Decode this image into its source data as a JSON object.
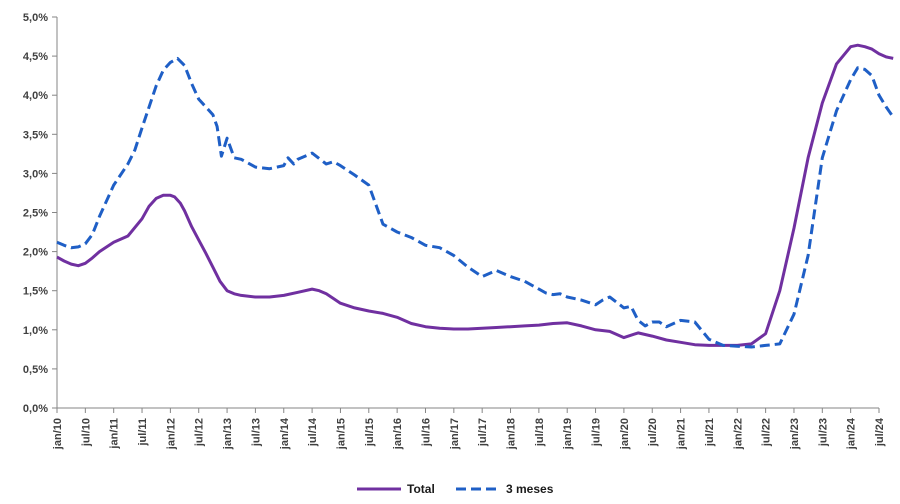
{
  "chart_data": {
    "type": "line",
    "title": "",
    "xlabel": "",
    "ylabel": "",
    "ylim": [
      0,
      5
    ],
    "y_ticks": [
      0,
      0.5,
      1,
      1.5,
      2,
      2.5,
      3,
      3.5,
      4,
      4.5,
      5
    ],
    "y_tick_labels": [
      "0,0%",
      "0,5%",
      "1,0%",
      "1,5%",
      "2,0%",
      "2,5%",
      "3,0%",
      "3,5%",
      "4,0%",
      "4,5%",
      "5,0%"
    ],
    "x_tick_labels": [
      "jan/10",
      "jul/10",
      "jan/11",
      "jul/11",
      "jan/12",
      "jul/12",
      "jan/13",
      "jul/13",
      "jan/14",
      "jul/14",
      "jan/15",
      "jul/15",
      "jan/16",
      "jul/16",
      "jan/17",
      "jul/17",
      "jan/18",
      "jul/18",
      "jan/19",
      "jul/19",
      "jan/20",
      "jul/20",
      "jan/21",
      "jul/21",
      "jan/22",
      "jul/22",
      "jan/23",
      "jul/23",
      "jan/24",
      "jul/24"
    ],
    "grid": false,
    "legend_position": "bottom",
    "series": [
      {
        "name": "Total",
        "color": "#7030A0",
        "style": "solid",
        "x": [
          0,
          0.5,
          1,
          1.5,
          2,
          2.5,
          3,
          4,
          5,
          6,
          6.5,
          7,
          7.5,
          8,
          8.3,
          8.7,
          9,
          9.5,
          10,
          10.5,
          11,
          11.5,
          12,
          12.5,
          13,
          14,
          15,
          16,
          17,
          18,
          18.5,
          19,
          19.5,
          20,
          21,
          22,
          23,
          24,
          25,
          26,
          27,
          28,
          29,
          30,
          31,
          32,
          33,
          34,
          35,
          36,
          37,
          38,
          39,
          40,
          41,
          42,
          43,
          44,
          45,
          46,
          47,
          48,
          49,
          50,
          51,
          52,
          53,
          54,
          55,
          56,
          56.5,
          57,
          57.5,
          58,
          58.5,
          59
        ],
        "values": [
          1.93,
          1.88,
          1.84,
          1.82,
          1.85,
          1.92,
          2.0,
          2.12,
          2.2,
          2.42,
          2.58,
          2.68,
          2.72,
          2.72,
          2.7,
          2.62,
          2.52,
          2.32,
          2.15,
          1.98,
          1.8,
          1.62,
          1.5,
          1.46,
          1.44,
          1.42,
          1.42,
          1.44,
          1.48,
          1.52,
          1.5,
          1.46,
          1.4,
          1.34,
          1.28,
          1.24,
          1.21,
          1.16,
          1.08,
          1.04,
          1.02,
          1.01,
          1.01,
          1.02,
          1.03,
          1.04,
          1.05,
          1.06,
          1.08,
          1.09,
          1.05,
          1.0,
          0.98,
          0.9,
          0.96,
          0.92,
          0.87,
          0.84,
          0.81,
          0.8,
          0.8,
          0.8,
          0.82,
          0.95,
          1.5,
          2.3,
          3.2,
          3.9,
          4.4,
          4.62,
          4.64,
          4.62,
          4.59,
          4.53,
          4.49,
          4.47
        ]
      },
      {
        "name": "3 meses",
        "color": "#1F5FC6",
        "style": "dashed",
        "x": [
          0,
          0.5,
          1,
          1.5,
          2,
          2.5,
          3,
          4,
          5,
          5.5,
          6,
          7,
          7.5,
          8,
          8.5,
          9,
          9.5,
          10,
          10.5,
          11,
          11.3,
          11.6,
          12,
          12.5,
          13,
          14,
          15,
          16,
          16.3,
          16.7,
          17,
          18,
          19,
          19.5,
          20,
          21,
          22,
          23,
          24,
          25,
          26,
          27,
          28,
          29,
          30,
          31,
          32,
          33,
          34,
          34.5,
          35,
          35.5,
          36,
          37,
          38,
          38.5,
          39,
          39.5,
          40,
          40.5,
          41,
          41.5,
          42,
          42.5,
          43,
          44,
          45,
          46,
          47,
          48,
          49,
          50,
          51,
          52,
          53,
          54,
          55,
          56,
          56.5,
          57,
          57.5,
          58,
          58.5,
          59
        ],
        "values": [
          2.12,
          2.08,
          2.05,
          2.06,
          2.1,
          2.22,
          2.45,
          2.85,
          3.12,
          3.3,
          3.58,
          4.12,
          4.32,
          4.42,
          4.47,
          4.38,
          4.15,
          3.95,
          3.85,
          3.75,
          3.6,
          3.22,
          3.45,
          3.2,
          3.18,
          3.08,
          3.06,
          3.1,
          3.2,
          3.12,
          3.18,
          3.26,
          3.12,
          3.15,
          3.1,
          2.98,
          2.85,
          2.35,
          2.25,
          2.18,
          2.08,
          2.05,
          1.95,
          1.8,
          1.68,
          1.76,
          1.68,
          1.62,
          1.52,
          1.47,
          1.45,
          1.46,
          1.42,
          1.38,
          1.32,
          1.38,
          1.42,
          1.35,
          1.28,
          1.3,
          1.12,
          1.05,
          1.1,
          1.1,
          1.04,
          1.12,
          1.1,
          0.88,
          0.8,
          0.79,
          0.78,
          0.8,
          0.82,
          1.2,
          1.95,
          3.2,
          3.8,
          4.2,
          4.35,
          4.33,
          4.25,
          4.0,
          3.85,
          3.72
        ]
      }
    ]
  }
}
